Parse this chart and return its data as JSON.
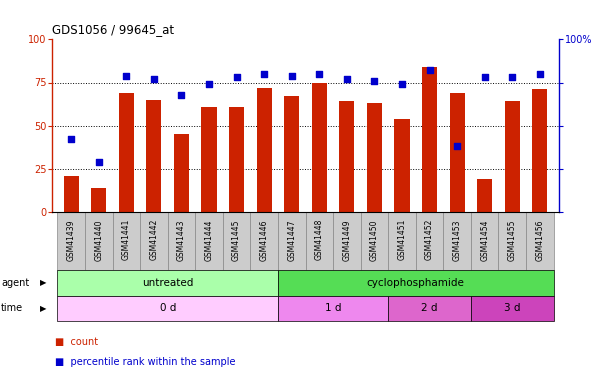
{
  "title": "GDS1056 / 99645_at",
  "samples": [
    "GSM41439",
    "GSM41440",
    "GSM41441",
    "GSM41442",
    "GSM41443",
    "GSM41444",
    "GSM41445",
    "GSM41446",
    "GSM41447",
    "GSM41448",
    "GSM41449",
    "GSM41450",
    "GSM41451",
    "GSM41452",
    "GSM41453",
    "GSM41454",
    "GSM41455",
    "GSM41456"
  ],
  "bar_values": [
    21,
    14,
    69,
    65,
    45,
    61,
    61,
    72,
    67,
    75,
    64,
    63,
    54,
    84,
    69,
    19,
    64,
    71
  ],
  "blue_values": [
    42,
    29,
    79,
    77,
    68,
    74,
    78,
    80,
    79,
    80,
    77,
    76,
    74,
    82,
    38,
    78,
    78,
    80
  ],
  "bar_color": "#cc2200",
  "blue_color": "#0000cc",
  "ylim": [
    0,
    100
  ],
  "yticks": [
    0,
    25,
    50,
    75,
    100
  ],
  "grid_lines": [
    25,
    50,
    75
  ],
  "agent_groups": [
    {
      "label": "untreated",
      "start": 0,
      "end": 8,
      "color": "#aaffaa"
    },
    {
      "label": "cyclophosphamide",
      "start": 8,
      "end": 18,
      "color": "#55dd55"
    }
  ],
  "time_groups": [
    {
      "label": "0 d",
      "start": 0,
      "end": 8,
      "color": "#ffccff"
    },
    {
      "label": "1 d",
      "start": 8,
      "end": 12,
      "color": "#ee88ee"
    },
    {
      "label": "2 d",
      "start": 12,
      "end": 15,
      "color": "#dd66cc"
    },
    {
      "label": "3 d",
      "start": 15,
      "end": 18,
      "color": "#cc44bb"
    }
  ],
  "legend_count_label": "count",
  "legend_pct_label": "percentile rank within the sample",
  "right_ylabel": "100%"
}
